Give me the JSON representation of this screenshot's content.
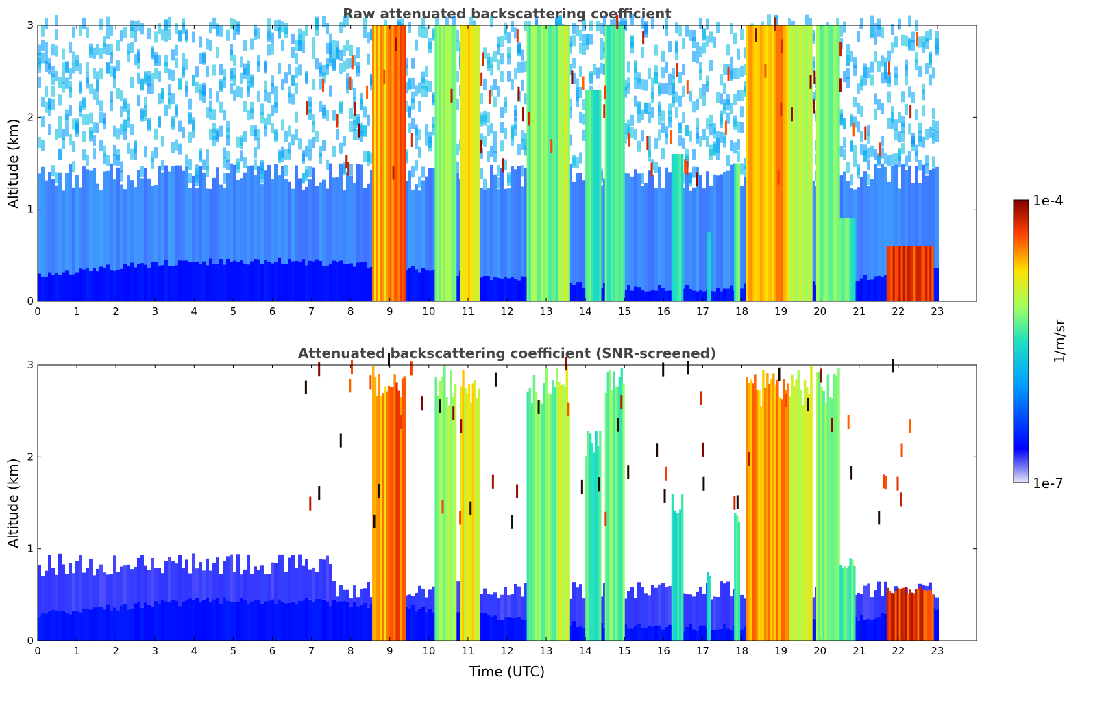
{
  "chart_data": [
    {
      "type": "heatmap",
      "title": "Raw attenuated backscattering coefficient",
      "xlabel": "",
      "ylabel": "Altitude (km)",
      "xlim": [
        0,
        24
      ],
      "ylim": [
        0,
        3
      ],
      "xticks": [
        "0",
        "1",
        "2",
        "3",
        "4",
        "5",
        "6",
        "7",
        "8",
        "9",
        "10",
        "11",
        "12",
        "13",
        "14",
        "15",
        "16",
        "17",
        "18",
        "19",
        "20",
        "21",
        "22",
        "23"
      ],
      "yticks": [
        "0",
        "1",
        "2",
        "3"
      ],
      "screened": false,
      "colorbar": {
        "label": "1/m/sr",
        "min_label": "1e-7",
        "max_label": "1e-4",
        "scale": "log"
      },
      "cloud_bands": [
        {
          "x0": 8.55,
          "x1": 8.95,
          "top": 3.0,
          "level": 0.78
        },
        {
          "x0": 8.95,
          "x1": 9.4,
          "top": 3.0,
          "level": 0.85
        },
        {
          "x0": 10.15,
          "x1": 10.7,
          "top": 3.0,
          "level": 0.62
        },
        {
          "x0": 10.8,
          "x1": 11.3,
          "top": 3.0,
          "level": 0.72
        },
        {
          "x0": 12.5,
          "x1": 13.3,
          "top": 3.0,
          "level": 0.58
        },
        {
          "x0": 13.3,
          "x1": 13.6,
          "top": 3.0,
          "level": 0.66
        },
        {
          "x0": 14.0,
          "x1": 14.4,
          "top": 2.3,
          "level": 0.52
        },
        {
          "x0": 14.5,
          "x1": 15.0,
          "top": 3.0,
          "level": 0.56
        },
        {
          "x0": 16.2,
          "x1": 16.5,
          "top": 1.6,
          "level": 0.5
        },
        {
          "x0": 17.1,
          "x1": 17.2,
          "top": 0.75,
          "level": 0.46
        },
        {
          "x0": 17.8,
          "x1": 17.95,
          "top": 1.5,
          "level": 0.55
        },
        {
          "x0": 18.1,
          "x1": 19.2,
          "top": 3.0,
          "level": 0.8
        },
        {
          "x0": 19.2,
          "x1": 19.8,
          "top": 3.0,
          "level": 0.66
        },
        {
          "x0": 19.9,
          "x1": 20.5,
          "top": 3.0,
          "level": 0.58
        },
        {
          "x0": 20.5,
          "x1": 20.9,
          "top": 0.9,
          "level": 0.55
        },
        {
          "x0": 21.7,
          "x1": 22.9,
          "top": 0.6,
          "level": 0.9
        }
      ]
    },
    {
      "type": "heatmap",
      "title": "Attenuated backscattering coefficient (SNR-screened)",
      "xlabel": "Time (UTC)",
      "ylabel": "Altitude (km)",
      "xlim": [
        0,
        24
      ],
      "ylim": [
        0,
        3
      ],
      "xticks": [
        "0",
        "1",
        "2",
        "3",
        "4",
        "5",
        "6",
        "7",
        "8",
        "9",
        "10",
        "11",
        "12",
        "13",
        "14",
        "15",
        "16",
        "17",
        "18",
        "19",
        "20",
        "21",
        "22",
        "23"
      ],
      "yticks": [
        "0",
        "1",
        "2",
        "3"
      ],
      "screened": true
    }
  ]
}
